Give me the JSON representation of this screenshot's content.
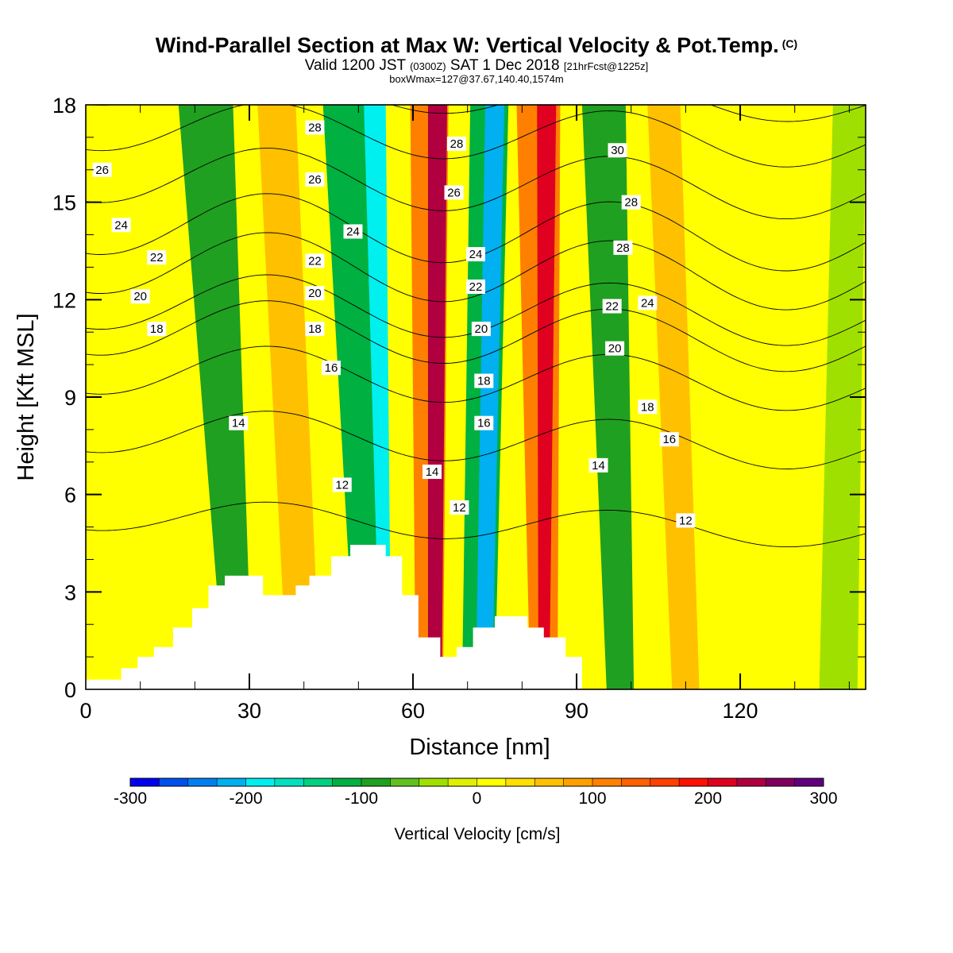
{
  "header": {
    "title": "Wind-Parallel Section at Max W: Vertical Velocity & Pot.Temp.",
    "title_unit": "(C)",
    "valid_prefix": "Valid 1200 JST",
    "valid_utc": "(0300Z)",
    "valid_date": "SAT 1 Dec 2018",
    "forecast_info": "[21hrFcst@1225z]",
    "box_info": "boxWmax=127@37.67,140.40,1574m"
  },
  "chart_data": {
    "type": "heatmap",
    "xlabel": "Distance [nm]",
    "ylabel": "Height [Kft MSL]",
    "xlim": [
      0,
      143
    ],
    "ylim": [
      0,
      18
    ],
    "x_ticks": [
      0,
      30,
      60,
      90,
      120
    ],
    "y_ticks": [
      0,
      3,
      6,
      9,
      12,
      15,
      18
    ],
    "colorbar": {
      "label": "Vertical Velocity [cm/s]",
      "range": [
        -300,
        300
      ],
      "ticks": [
        "-300",
        "-200",
        "-100",
        "0",
        "100",
        "200",
        "300"
      ],
      "colors": [
        "#0000f0",
        "#0050f0",
        "#0080f0",
        "#00b0f0",
        "#00f0f0",
        "#00e0c0",
        "#00d080",
        "#00b040",
        "#20a020",
        "#60c020",
        "#a0e000",
        "#e0f000",
        "#ffff00",
        "#ffe000",
        "#ffc000",
        "#ffa000",
        "#ff8000",
        "#ff6000",
        "#ff4000",
        "#ff1000",
        "#e00020",
        "#b00040",
        "#800060",
        "#600080"
      ]
    },
    "velocity_bands": [
      {
        "x_bottom": 28,
        "x_top": 22,
        "w_bottom": 5,
        "w_top": 10,
        "value": -90
      },
      {
        "x_bottom": 40,
        "x_top": 35,
        "w_bottom": 6,
        "w_top": 7,
        "value": 70
      },
      {
        "x_bottom": 53,
        "x_top": 48,
        "w_bottom": 7,
        "w_top": 9,
        "value": -110
      },
      {
        "x_bottom": 55,
        "x_top": 53,
        "w_bottom": 2,
        "w_top": 4,
        "value": -200
      },
      {
        "x_bottom": 63,
        "x_top": 63,
        "w_bottom": 5,
        "w_top": 7,
        "value": 120
      },
      {
        "x_bottom": 64,
        "x_top": 64.5,
        "w_bottom": 2.5,
        "w_top": 3.5,
        "value": 230
      },
      {
        "x_bottom": 72,
        "x_top": 74,
        "w_bottom": 6,
        "w_top": 7,
        "value": -120
      },
      {
        "x_bottom": 73,
        "x_top": 75,
        "w_bottom": 3,
        "w_top": 3.5,
        "value": -220
      },
      {
        "x_bottom": 84,
        "x_top": 83,
        "w_bottom": 5,
        "w_top": 8,
        "value": 120
      },
      {
        "x_bottom": 84,
        "x_top": 84.5,
        "w_bottom": 2,
        "w_top": 3.5,
        "value": 220
      },
      {
        "x_bottom": 98,
        "x_top": 95,
        "w_bottom": 5,
        "w_top": 8,
        "value": -80
      },
      {
        "x_bottom": 110,
        "x_top": 106,
        "w_bottom": 5,
        "w_top": 6,
        "value": 50
      },
      {
        "x_bottom": 138,
        "x_top": 140,
        "w_bottom": 7,
        "w_top": 6,
        "value": -30
      }
    ],
    "terrain": [
      [
        0,
        0.3
      ],
      [
        6.5,
        0.3
      ],
      [
        6.5,
        0.65
      ],
      [
        9.5,
        0.65
      ],
      [
        9.5,
        1.0
      ],
      [
        12.5,
        1.0
      ],
      [
        12.5,
        1.3
      ],
      [
        16,
        1.3
      ],
      [
        16,
        1.9
      ],
      [
        19.5,
        1.9
      ],
      [
        19.5,
        2.5
      ],
      [
        22.5,
        2.5
      ],
      [
        22.5,
        3.2
      ],
      [
        25.5,
        3.2
      ],
      [
        25.5,
        3.5
      ],
      [
        32.5,
        3.5
      ],
      [
        32.5,
        2.9
      ],
      [
        38.5,
        2.9
      ],
      [
        38.5,
        3.2
      ],
      [
        41,
        3.2
      ],
      [
        41,
        3.5
      ],
      [
        45,
        3.5
      ],
      [
        45,
        4.1
      ],
      [
        48.5,
        4.1
      ],
      [
        48.5,
        4.45
      ],
      [
        55,
        4.45
      ],
      [
        55,
        4.1
      ],
      [
        58,
        4.1
      ],
      [
        58,
        2.9
      ],
      [
        61,
        2.9
      ],
      [
        61,
        1.6
      ],
      [
        65,
        1.6
      ],
      [
        65,
        1.0
      ],
      [
        68,
        1.0
      ],
      [
        68,
        1.3
      ],
      [
        71,
        1.3
      ],
      [
        71,
        1.9
      ],
      [
        75,
        1.9
      ],
      [
        75,
        2.25
      ],
      [
        81,
        2.25
      ],
      [
        81,
        1.9
      ],
      [
        84,
        1.9
      ],
      [
        84,
        1.6
      ],
      [
        88,
        1.6
      ],
      [
        88,
        1.0
      ],
      [
        91,
        1.0
      ],
      [
        91,
        0
      ]
    ],
    "isentropes": [
      {
        "value": "12",
        "y": 5.4,
        "amp": 0.5
      },
      {
        "value": "14",
        "y": 8.0,
        "amp": 0.7
      },
      {
        "value": "16",
        "y": 9.9,
        "amp": 0.8
      },
      {
        "value": "18",
        "y": 11.2,
        "amp": 0.9
      },
      {
        "value": "20",
        "y": 12.0,
        "amp": 0.9
      },
      {
        "value": "22",
        "y": 13.2,
        "amp": 1.0
      },
      {
        "value": "24",
        "y": 14.4,
        "amp": 1.0
      },
      {
        "value": "26",
        "y": 15.9,
        "amp": 0.9
      },
      {
        "value": "28",
        "y": 17.4,
        "amp": 0.8
      },
      {
        "value": "30",
        "y": 18.6,
        "amp": 0.6
      }
    ],
    "contour_labels": [
      {
        "text": "26",
        "x": 3,
        "y": 16.0
      },
      {
        "text": "24",
        "x": 6.5,
        "y": 14.3
      },
      {
        "text": "22",
        "x": 13,
        "y": 13.3
      },
      {
        "text": "20",
        "x": 10,
        "y": 12.1
      },
      {
        "text": "18",
        "x": 13,
        "y": 11.1
      },
      {
        "text": "14",
        "x": 28,
        "y": 8.2
      },
      {
        "text": "28",
        "x": 42,
        "y": 17.3
      },
      {
        "text": "26",
        "x": 42,
        "y": 15.7
      },
      {
        "text": "24",
        "x": 49,
        "y": 14.1
      },
      {
        "text": "22",
        "x": 42,
        "y": 13.2
      },
      {
        "text": "20",
        "x": 42,
        "y": 12.2
      },
      {
        "text": "18",
        "x": 42,
        "y": 11.1
      },
      {
        "text": "16",
        "x": 45,
        "y": 9.9
      },
      {
        "text": "12",
        "x": 47,
        "y": 6.3
      },
      {
        "text": "28",
        "x": 68,
        "y": 16.8
      },
      {
        "text": "26",
        "x": 67.5,
        "y": 15.3
      },
      {
        "text": "24",
        "x": 71.5,
        "y": 13.4
      },
      {
        "text": "22",
        "x": 71.5,
        "y": 12.4
      },
      {
        "text": "20",
        "x": 72.5,
        "y": 11.1
      },
      {
        "text": "18",
        "x": 73,
        "y": 9.5
      },
      {
        "text": "16",
        "x": 73,
        "y": 8.2
      },
      {
        "text": "14",
        "x": 63.5,
        "y": 6.7
      },
      {
        "text": "12",
        "x": 68.5,
        "y": 5.6
      },
      {
        "text": "30",
        "x": 97.5,
        "y": 16.6
      },
      {
        "text": "28",
        "x": 100,
        "y": 15.0
      },
      {
        "text": "28",
        "x": 98.5,
        "y": 13.6
      },
      {
        "text": "22",
        "x": 96.5,
        "y": 11.8
      },
      {
        "text": "24",
        "x": 103,
        "y": 11.9
      },
      {
        "text": "20",
        "x": 97,
        "y": 10.5
      },
      {
        "text": "18",
        "x": 103,
        "y": 8.7
      },
      {
        "text": "16",
        "x": 107,
        "y": 7.7
      },
      {
        "text": "14",
        "x": 94,
        "y": 6.9
      },
      {
        "text": "12",
        "x": 110,
        "y": 5.2
      }
    ]
  }
}
